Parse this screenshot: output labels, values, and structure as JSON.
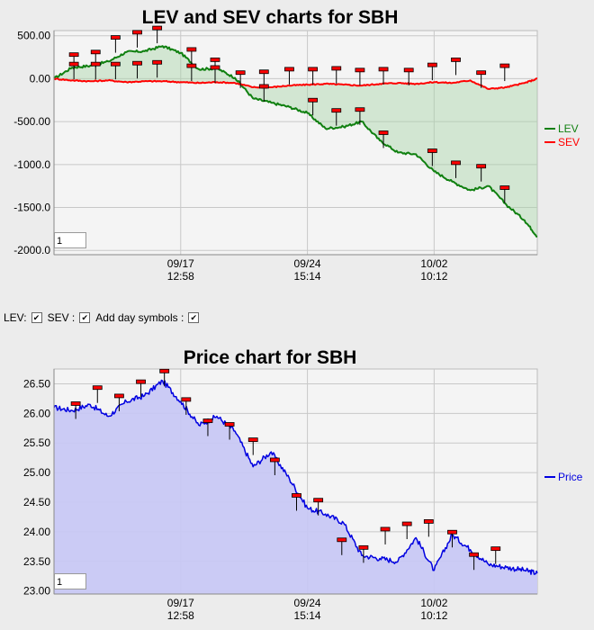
{
  "charts": {
    "lev": {
      "title": "LEV and SEV charts for SBH",
      "ylim": [
        -2050,
        560
      ],
      "y_ticks": [
        500,
        0,
        -500,
        -1000,
        -1500,
        -2000
      ],
      "y_tick_labels": [
        "500.00",
        "0.00",
        "-500.00",
        "-1000.0",
        "-1500.0",
        "-2000.0"
      ],
      "legend": [
        {
          "label": "LEV",
          "color": "#108010"
        },
        {
          "label": "SEV",
          "color": "#ff0000"
        }
      ],
      "page_box": "1"
    },
    "price": {
      "title": "Price chart for SBH",
      "ylim": [
        22.95,
        26.75
      ],
      "y_ticks": [
        26.5,
        26.0,
        25.5,
        25.0,
        24.5,
        24.0,
        23.5,
        23.0
      ],
      "y_tick_labels": [
        "26.50",
        "26.00",
        "25.50",
        "25.00",
        "24.50",
        "24.00",
        "23.50",
        "23.00"
      ],
      "legend": [
        {
          "label": "Price",
          "color": "#0000e0"
        }
      ],
      "page_box": "1"
    }
  },
  "x_axis": {
    "ticks": [
      {
        "x": 7,
        "label1": "09/17",
        "label2": "12:58"
      },
      {
        "x": 14,
        "label1": "09/24",
        "label2": "15:14"
      },
      {
        "x": 21,
        "label1": "10/02",
        "label2": "10:12"
      }
    ],
    "xlim": [
      0,
      26.7
    ]
  },
  "controls": {
    "lev_label": "LEV:",
    "sev_label": "SEV :",
    "day_label": "Add day symbols :",
    "check": "✔"
  },
  "chart_data": [
    {
      "type": "line",
      "title": "LEV and SEV charts for SBH",
      "x": [
        0,
        1,
        2,
        3,
        4,
        5,
        6,
        7,
        8,
        9,
        10,
        11,
        12,
        13,
        14,
        15,
        16,
        17,
        18,
        19,
        20,
        21,
        22,
        23,
        24,
        25,
        26,
        26.7
      ],
      "series": [
        {
          "name": "LEV",
          "values": [
            0,
            130,
            150,
            200,
            310,
            320,
            380,
            300,
            110,
            120,
            10,
            -230,
            -280,
            -330,
            -400,
            -580,
            -560,
            -500,
            -720,
            -860,
            -880,
            -1080,
            -1200,
            -1300,
            -1250,
            -1470,
            -1650,
            -1840
          ]
        },
        {
          "name": "SEV",
          "values": [
            0,
            -20,
            -30,
            -20,
            -40,
            -30,
            -30,
            -40,
            -50,
            -40,
            -50,
            -100,
            -100,
            -80,
            -70,
            -60,
            -70,
            -80,
            -60,
            -50,
            -60,
            -40,
            -50,
            -20,
            -120,
            -100,
            -50,
            0
          ]
        }
      ],
      "ylim": [
        -2050,
        560
      ]
    },
    {
      "type": "area",
      "title": "Price chart for SBH",
      "x": [
        0,
        1,
        2,
        3,
        4,
        5,
        6,
        7,
        8,
        9,
        10,
        11,
        12,
        13,
        14,
        15,
        16,
        17,
        18,
        19,
        20,
        21,
        22,
        23,
        24,
        25,
        26,
        26.7
      ],
      "series": [
        {
          "name": "Price",
          "values": [
            26.1,
            26.05,
            26.15,
            25.95,
            26.2,
            26.3,
            26.55,
            26.2,
            25.8,
            25.95,
            25.7,
            25.1,
            25.35,
            24.9,
            24.4,
            24.3,
            24.15,
            23.6,
            23.55,
            23.5,
            23.9,
            23.35,
            23.95,
            23.7,
            23.45,
            23.4,
            23.35,
            23.3
          ]
        }
      ],
      "ylim": [
        22.95,
        26.75
      ]
    }
  ],
  "markers": {
    "lev_upper": [
      {
        "x": 1.1,
        "y": 270
      },
      {
        "x": 2.3,
        "y": 300
      },
      {
        "x": 3.4,
        "y": 470
      },
      {
        "x": 4.6,
        "y": 530
      },
      {
        "x": 5.7,
        "y": 580
      },
      {
        "x": 7.6,
        "y": 330
      },
      {
        "x": 8.9,
        "y": 210
      },
      {
        "x": 10.3,
        "y": 60
      },
      {
        "x": 11.6,
        "y": 70
      },
      {
        "x": 13,
        "y": 100
      },
      {
        "x": 14.3,
        "y": 100
      },
      {
        "x": 15.6,
        "y": 110
      },
      {
        "x": 16.9,
        "y": 90
      },
      {
        "x": 18.2,
        "y": 100
      },
      {
        "x": 19.6,
        "y": 90
      },
      {
        "x": 20.9,
        "y": 150
      },
      {
        "x": 22.2,
        "y": 210
      },
      {
        "x": 23.6,
        "y": 60
      },
      {
        "x": 24.9,
        "y": 140
      }
    ],
    "lev_lower": [
      {
        "x": 1.1,
        "y": 160
      },
      {
        "x": 2.3,
        "y": 160
      },
      {
        "x": 3.4,
        "y": 160
      },
      {
        "x": 4.6,
        "y": 170
      },
      {
        "x": 5.7,
        "y": 180
      },
      {
        "x": 7.6,
        "y": 140
      },
      {
        "x": 8.9,
        "y": 120
      },
      {
        "x": 11.6,
        "y": -100
      },
      {
        "x": 14.3,
        "y": -260
      },
      {
        "x": 15.6,
        "y": -380
      },
      {
        "x": 16.9,
        "y": -370
      },
      {
        "x": 18.2,
        "y": -640
      },
      {
        "x": 20.9,
        "y": -850
      },
      {
        "x": 22.2,
        "y": -990
      },
      {
        "x": 23.6,
        "y": -1030
      },
      {
        "x": 24.9,
        "y": -1280
      }
    ],
    "price": [
      {
        "x": 1.2,
        "y": 26.15
      },
      {
        "x": 2.4,
        "y": 26.42
      },
      {
        "x": 3.6,
        "y": 26.28
      },
      {
        "x": 4.8,
        "y": 26.52
      },
      {
        "x": 6.1,
        "y": 26.7
      },
      {
        "x": 7.3,
        "y": 26.22
      },
      {
        "x": 8.5,
        "y": 25.86
      },
      {
        "x": 9.7,
        "y": 25.8
      },
      {
        "x": 11,
        "y": 25.54
      },
      {
        "x": 12.2,
        "y": 25.2
      },
      {
        "x": 13.4,
        "y": 24.6
      },
      {
        "x": 14.6,
        "y": 24.52
      },
      {
        "x": 15.9,
        "y": 23.85
      },
      {
        "x": 17.1,
        "y": 23.72
      },
      {
        "x": 18.3,
        "y": 24.03
      },
      {
        "x": 19.5,
        "y": 24.12
      },
      {
        "x": 20.7,
        "y": 24.16
      },
      {
        "x": 22,
        "y": 23.98
      },
      {
        "x": 23.2,
        "y": 23.6
      },
      {
        "x": 24.4,
        "y": 23.7
      }
    ]
  }
}
